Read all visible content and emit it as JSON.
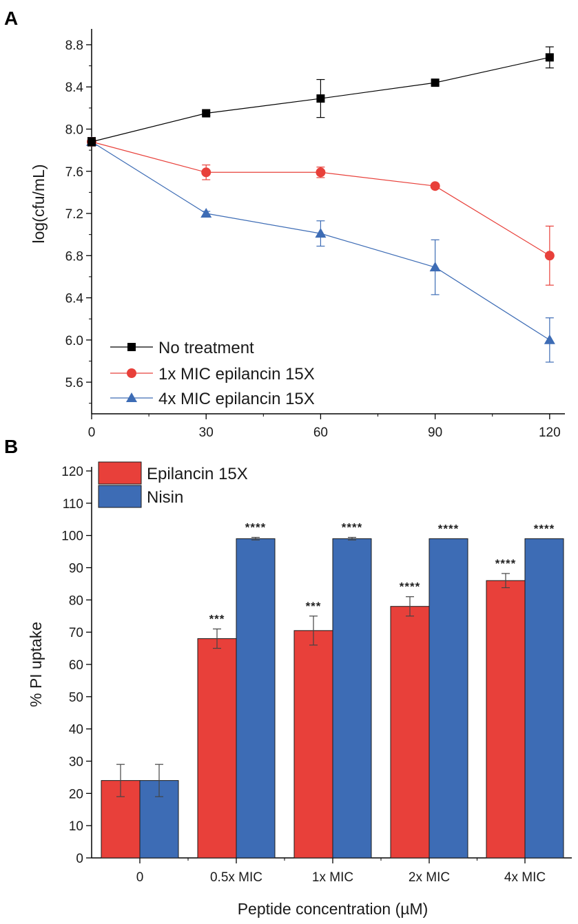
{
  "chart_data": [
    {
      "type": "line",
      "panel_label": "A",
      "title": "",
      "xlabel": "",
      "ylabel": "log(cfu/mL)",
      "x": [
        0,
        30,
        60,
        90,
        120
      ],
      "xlim": [
        0,
        124
      ],
      "ylim": [
        5.3,
        8.95
      ],
      "xticks": [
        "0",
        "30",
        "60",
        "90",
        "120"
      ],
      "yticks": [
        "5.6",
        "6.0",
        "6.4",
        "6.8",
        "7.2",
        "7.6",
        "8.0",
        "8.4",
        "8.8"
      ],
      "legend_position": "bottom-left",
      "series": [
        {
          "name": "No treatment",
          "marker": "square",
          "color": "#000000",
          "values": [
            7.88,
            8.15,
            8.29,
            8.44,
            8.68
          ],
          "errors": [
            0.04,
            0.02,
            0.18,
            0.02,
            0.1
          ]
        },
        {
          "name": "1x MIC epilancin 15X",
          "marker": "circle",
          "color": "#e8403a",
          "values": [
            7.88,
            7.59,
            7.59,
            7.46,
            6.8
          ],
          "errors": [
            0.04,
            0.07,
            0.05,
            0.02,
            0.28
          ]
        },
        {
          "name": "4x MIC epilancin 15X",
          "marker": "triangle",
          "color": "#3d6cb5",
          "values": [
            7.88,
            7.2,
            7.01,
            6.69,
            6.0
          ],
          "errors": [
            0.04,
            0.02,
            0.12,
            0.26,
            0.21
          ]
        }
      ]
    },
    {
      "type": "bar",
      "panel_label": "B",
      "title": "",
      "xlabel": "Peptide concentration (µM)",
      "ylabel": "% PI uptake",
      "categories": [
        "0",
        "0.5x MIC",
        "1x MIC",
        "2x MIC",
        "4x MIC"
      ],
      "ylim": [
        0,
        120
      ],
      "yticks": [
        "0",
        "10",
        "20",
        "30",
        "40",
        "50",
        "60",
        "70",
        "80",
        "90",
        "100",
        "110",
        "120"
      ],
      "legend_position": "top-left",
      "series": [
        {
          "name": "Epilancin 15X",
          "color": "#e8403a",
          "values": [
            24,
            68,
            70.5,
            78,
            86
          ],
          "errors": [
            5,
            3,
            4.5,
            3,
            2.2
          ],
          "significance": [
            "",
            "***",
            "***",
            "****",
            "****"
          ]
        },
        {
          "name": "Nisin",
          "color": "#3d6cb5",
          "values": [
            24,
            99,
            99,
            99,
            99
          ],
          "errors": [
            5,
            0.4,
            0.4,
            0,
            0
          ],
          "significance": [
            "",
            "****",
            "****",
            "****",
            "****"
          ]
        }
      ]
    }
  ]
}
